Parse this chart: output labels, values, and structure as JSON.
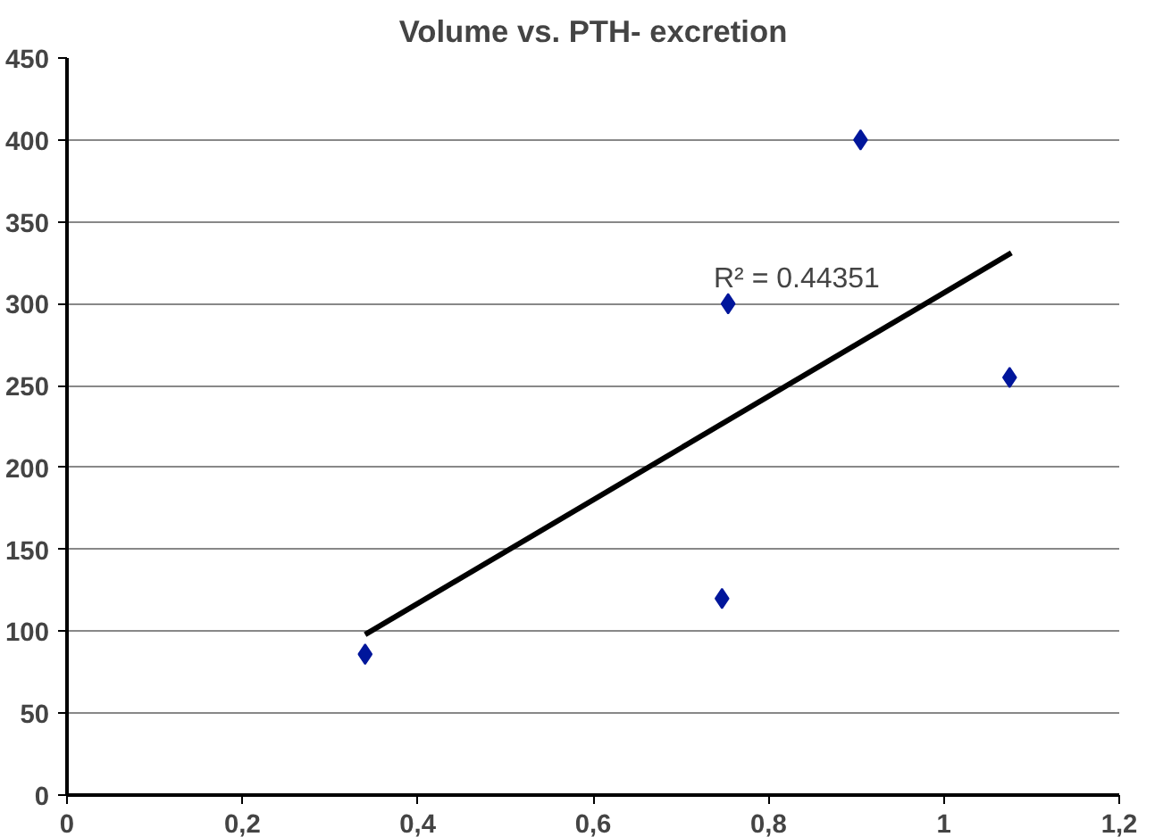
{
  "chart_data": {
    "type": "scatter",
    "title": "Volume vs. PTH- excretion",
    "x": [
      0.34,
      0.747,
      0.754,
      0.905,
      1.075
    ],
    "series": [
      {
        "color": "#00169b",
        "values": [
          86,
          120,
          300,
          400,
          255
        ],
        "marker": "diamond"
      },
      {
        "type": "line",
        "color": "#000000",
        "x": [
          0.34,
          1.077
        ],
        "values": [
          98,
          331
        ],
        "line_style": "solid"
      }
    ],
    "annotations": [
      "R² = 0.44351"
    ],
    "xlim": [
      0,
      1.2
    ],
    "xticks": [
      0,
      {
        "value": 0.2,
        "label": "0,2"
      },
      {
        "value": 0.4,
        "label": "0,4"
      },
      {
        "value": 0.6,
        "label": "0,6"
      },
      {
        "value": 0.8,
        "label": "0,8"
      },
      1,
      {
        "value": 1.2,
        "label": "1,2"
      }
    ],
    "ylim": [
      0,
      450
    ],
    "yticks": [
      0,
      50,
      100,
      150,
      200,
      250,
      300,
      350,
      400,
      450
    ],
    "grid": "y"
  }
}
